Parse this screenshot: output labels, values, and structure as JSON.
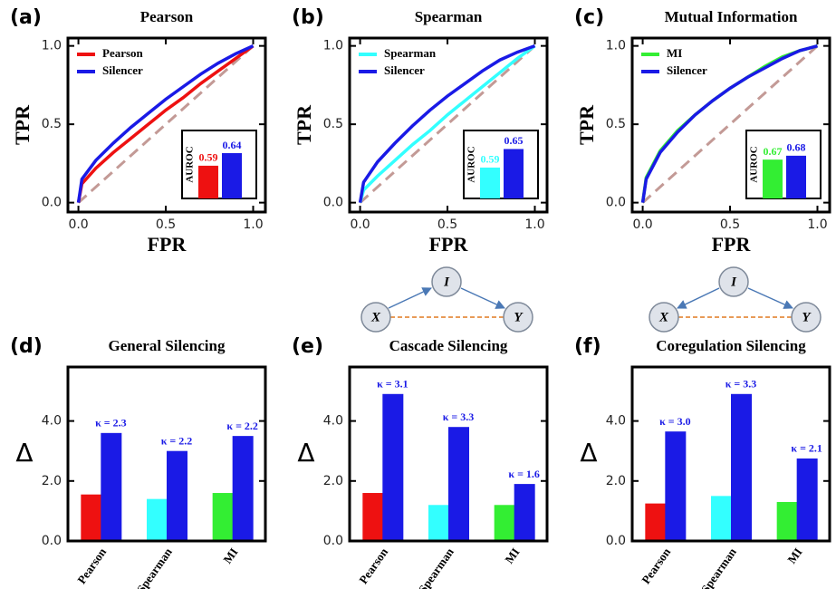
{
  "chart_data": [
    {
      "type": "line",
      "panel_label": "(a)",
      "title": "Pearson",
      "xlabel": "FPR",
      "ylabel": "TPR",
      "x": [
        0,
        0.02,
        0.1,
        0.2,
        0.3,
        0.4,
        0.5,
        0.6,
        0.7,
        0.8,
        0.9,
        1.0
      ],
      "series": [
        {
          "name": "Pearson",
          "color": "#ee1111",
          "values": [
            0,
            0.12,
            0.22,
            0.32,
            0.41,
            0.5,
            0.59,
            0.67,
            0.76,
            0.84,
            0.92,
            1
          ]
        },
        {
          "name": "Silencer",
          "color": "#1a1ae6",
          "values": [
            0,
            0.15,
            0.27,
            0.38,
            0.48,
            0.57,
            0.66,
            0.74,
            0.82,
            0.89,
            0.95,
            1
          ]
        }
      ],
      "diagonal": true,
      "diagonal_color": "#c39a96",
      "xlim": [
        -0.06,
        1.07
      ],
      "ylim": [
        -0.06,
        1.05
      ],
      "xticks": [
        {
          "value": 0,
          "label": "0.0"
        },
        {
          "value": 0.5,
          "label": "0.5"
        },
        {
          "value": 1,
          "label": "1.0"
        }
      ],
      "yticks": [
        {
          "value": 0,
          "label": "0.0"
        },
        0.5,
        {
          "value": 1,
          "label": "1.0"
        }
      ],
      "legend": "upper-left",
      "inset": {
        "ylabel": "AUROC",
        "ylim": [
          0.46,
          0.73
        ],
        "values": [
          0.59,
          0.64
        ]
      }
    },
    {
      "type": "line",
      "panel_label": "(b)",
      "title": "Spearman",
      "xlabel": "FPR",
      "ylabel": "TPR",
      "x": [
        0,
        0.02,
        0.1,
        0.2,
        0.3,
        0.4,
        0.5,
        0.6,
        0.7,
        0.8,
        0.9,
        1.0
      ],
      "series": [
        {
          "name": "Spearman",
          "color": "#33ffff",
          "values": [
            0,
            0.08,
            0.17,
            0.27,
            0.37,
            0.46,
            0.56,
            0.65,
            0.74,
            0.83,
            0.92,
            1
          ]
        },
        {
          "name": "Silencer",
          "color": "#1a1ae6",
          "values": [
            0,
            0.13,
            0.26,
            0.38,
            0.49,
            0.59,
            0.68,
            0.76,
            0.84,
            0.91,
            0.96,
            1
          ]
        }
      ],
      "diagonal": true,
      "diagonal_color": "#c39a96",
      "xlim": [
        -0.06,
        1.07
      ],
      "ylim": [
        -0.06,
        1.05
      ],
      "xticks": [
        {
          "value": 0,
          "label": "0.0"
        },
        {
          "value": 0.5,
          "label": "0.5"
        },
        {
          "value": 1,
          "label": "1.0"
        }
      ],
      "yticks": [
        {
          "value": 0,
          "label": "0.0"
        },
        0.5,
        {
          "value": 1,
          "label": "1.0"
        }
      ],
      "legend": "upper-left",
      "inset": {
        "ylabel": "AUROC",
        "ylim": [
          0.49,
          0.71
        ],
        "values": [
          0.59,
          0.65
        ]
      }
    },
    {
      "type": "line",
      "panel_label": "(c)",
      "title": "Mutual Information",
      "xlabel": "FPR",
      "ylabel": "TPR",
      "x": [
        0,
        0.02,
        0.1,
        0.2,
        0.3,
        0.4,
        0.5,
        0.6,
        0.7,
        0.8,
        0.9,
        1.0
      ],
      "series": [
        {
          "name": "MI",
          "color": "#33ee33",
          "values": [
            0,
            0.16,
            0.33,
            0.46,
            0.56,
            0.65,
            0.73,
            0.8,
            0.87,
            0.93,
            0.97,
            1
          ]
        },
        {
          "name": "Silencer",
          "color": "#1a1ae6",
          "values": [
            0,
            0.15,
            0.32,
            0.45,
            0.56,
            0.65,
            0.73,
            0.8,
            0.86,
            0.92,
            0.97,
            1
          ]
        }
      ],
      "diagonal": true,
      "diagonal_color": "#c39a96",
      "xlim": [
        -0.06,
        1.07
      ],
      "ylim": [
        -0.06,
        1.05
      ],
      "xticks": [
        {
          "value": 0,
          "label": "0.0"
        },
        {
          "value": 0.5,
          "label": "0.5"
        },
        {
          "value": 1,
          "label": "1.0"
        }
      ],
      "yticks": [
        {
          "value": 0,
          "label": "0.0"
        },
        0.5,
        {
          "value": 1,
          "label": "1.0"
        }
      ],
      "legend": "upper-left",
      "inset": {
        "ylabel": "AUROC",
        "ylim": [
          0.57,
          0.745
        ],
        "values": [
          0.67,
          0.68
        ]
      }
    },
    {
      "type": "bar",
      "panel_label": "(d)",
      "title": "General Silencing",
      "ylabel": "Δ",
      "categories": [
        "Pearson",
        "Spearman",
        "MI"
      ],
      "series": [
        {
          "colors": [
            "#ee1111",
            "#33ffff",
            "#33ee33"
          ],
          "values": [
            1.55,
            1.4,
            1.6
          ]
        },
        {
          "color": "#1a1ae6",
          "values": [
            3.6,
            3.0,
            3.5
          ]
        }
      ],
      "annotations": [
        "κ = 2.3",
        "κ = 2.2",
        "κ = 2.2"
      ],
      "ylim": [
        0,
        5.8
      ],
      "yticks": [
        {
          "value": 0,
          "label": "0.0"
        },
        {
          "value": 2,
          "label": "2.0"
        },
        {
          "value": 4,
          "label": "4.0"
        }
      ]
    },
    {
      "type": "bar",
      "panel_label": "(e)",
      "title": "Cascade Silencing",
      "ylabel": "Δ",
      "categories": [
        "Pearson",
        "Spearman",
        "MI"
      ],
      "series": [
        {
          "colors": [
            "#ee1111",
            "#33ffff",
            "#33ee33"
          ],
          "values": [
            1.6,
            1.2,
            1.2
          ]
        },
        {
          "color": "#1a1ae6",
          "values": [
            4.9,
            3.8,
            1.9
          ]
        }
      ],
      "annotations": [
        "κ = 3.1",
        "κ = 3.3",
        "κ = 1.6"
      ],
      "ylim": [
        0,
        5.8
      ],
      "yticks": [
        {
          "value": 0,
          "label": "0.0"
        },
        {
          "value": 2,
          "label": "2.0"
        },
        {
          "value": 4,
          "label": "4.0"
        }
      ]
    },
    {
      "type": "bar",
      "panel_label": "(f)",
      "title": "Coregulation Silencing",
      "ylabel": "Δ",
      "categories": [
        "Pearson",
        "Spearman",
        "MI"
      ],
      "series": [
        {
          "colors": [
            "#ee1111",
            "#33ffff",
            "#33ee33"
          ],
          "values": [
            1.25,
            1.5,
            1.3
          ]
        },
        {
          "color": "#1a1ae6",
          "values": [
            3.65,
            4.9,
            2.75
          ]
        }
      ],
      "annotations": [
        "κ = 3.0",
        "κ = 3.3",
        "κ = 2.1"
      ],
      "ylim": [
        0,
        5.8
      ],
      "yticks": [
        {
          "value": 0,
          "label": "0.0"
        },
        {
          "value": 2,
          "label": "2.0"
        },
        {
          "value": 4,
          "label": "4.0"
        }
      ]
    }
  ],
  "diagrams": [
    {
      "nodes": [
        "X",
        "I",
        "Y"
      ]
    },
    {
      "nodes": [
        "X",
        "I",
        "Y"
      ]
    }
  ]
}
